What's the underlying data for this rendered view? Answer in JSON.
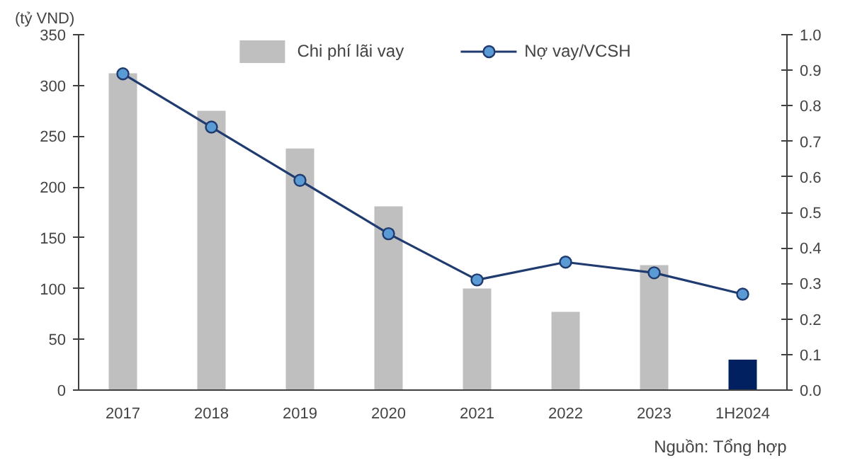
{
  "chart_data": {
    "type": "bar",
    "categories": [
      "2017",
      "2018",
      "2019",
      "2020",
      "2021",
      "2022",
      "2023",
      "1H2024"
    ],
    "ylabel": "(tỷ VND)",
    "series": [
      {
        "name": "Chi phí lãi vay",
        "colors": [
          "#bfbfbf",
          "#bfbfbf",
          "#bfbfbf",
          "#bfbfbf",
          "#bfbfbf",
          "#bfbfbf",
          "#bfbfbf",
          "#002060"
        ],
        "values": [
          312,
          275,
          238,
          181,
          100,
          77,
          123,
          30
        ]
      },
      {
        "name": "Nợ vay/VCSH",
        "type": "line",
        "axis": "y2",
        "color": "#1f3b6f",
        "marker": "circle",
        "values": [
          0.89,
          0.74,
          0.59,
          0.44,
          0.31,
          0.36,
          0.33,
          0.27
        ]
      }
    ],
    "ylim": [
      0,
      350
    ],
    "yticks": [
      0,
      50,
      100,
      150,
      200,
      250,
      300,
      350
    ],
    "y2lim": [
      0,
      1.0
    ],
    "y2ticks": [
      {
        "value": 0,
        "label": "0.0"
      },
      0.1,
      0.2,
      0.3,
      0.4,
      0.5,
      0.6,
      0.7,
      0.8,
      0.9,
      {
        "value": 1.0,
        "label": "1.0"
      }
    ],
    "grid": false,
    "legend": "top",
    "annotations": [
      "Nguồn: Tổng hợp"
    ]
  }
}
